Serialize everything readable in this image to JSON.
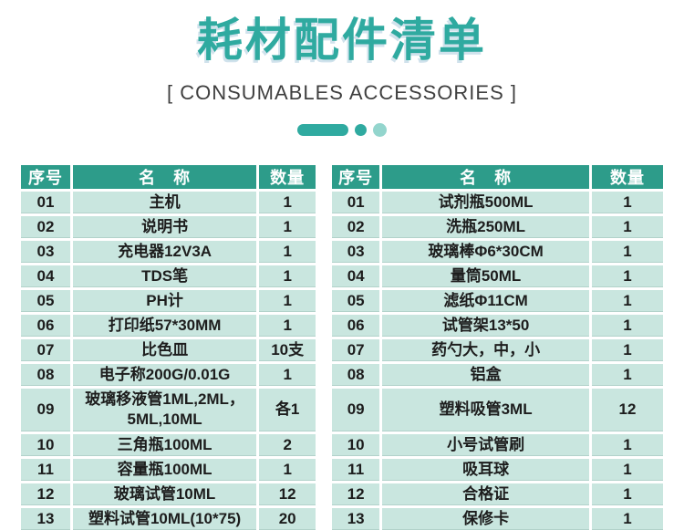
{
  "page": {
    "title": "耗材配件清单",
    "subtitle": "[ CONSUMABLES ACCESSORIES ]"
  },
  "columns": {
    "no": "序号",
    "name": "名　称",
    "qty": "数量"
  },
  "tables": {
    "left": [
      {
        "no": "01",
        "name": "主机",
        "qty": "1"
      },
      {
        "no": "02",
        "name": "说明书",
        "qty": "1"
      },
      {
        "no": "03",
        "name": "充电器12V3A",
        "qty": "1"
      },
      {
        "no": "04",
        "name": "TDS笔",
        "qty": "1"
      },
      {
        "no": "05",
        "name": "PH计",
        "qty": "1"
      },
      {
        "no": "06",
        "name": "打印纸57*30MM",
        "qty": "1"
      },
      {
        "no": "07",
        "name": "比色皿",
        "qty": "10支"
      },
      {
        "no": "08",
        "name": "电子称200G/0.01G",
        "qty": "1"
      },
      {
        "no": "09",
        "name": "玻璃移液管1ML,2ML，5ML,10ML",
        "qty": "各1"
      },
      {
        "no": "10",
        "name": "三角瓶100ML",
        "qty": "2"
      },
      {
        "no": "11",
        "name": "容量瓶100ML",
        "qty": "1"
      },
      {
        "no": "12",
        "name": "玻璃试管10ML",
        "qty": "12"
      },
      {
        "no": "13",
        "name": "塑料试管10ML(10*75)",
        "qty": "20"
      }
    ],
    "right": [
      {
        "no": "01",
        "name": "试剂瓶500ML",
        "qty": "1"
      },
      {
        "no": "02",
        "name": "洗瓶250ML",
        "qty": "1"
      },
      {
        "no": "03",
        "name": "玻璃棒Φ6*30CM",
        "qty": "1"
      },
      {
        "no": "04",
        "name": "量筒50ML",
        "qty": "1"
      },
      {
        "no": "05",
        "name": "滤纸Φ11CM",
        "qty": "1"
      },
      {
        "no": "06",
        "name": "试管架13*50",
        "qty": "1"
      },
      {
        "no": "07",
        "name": "药勺大，中，小",
        "qty": "1"
      },
      {
        "no": "08",
        "name": "铝盒",
        "qty": "1"
      },
      {
        "no": "09",
        "name": "塑料吸管3ML",
        "qty": "12"
      },
      {
        "no": "10",
        "name": "小号试管刷",
        "qty": "1"
      },
      {
        "no": "11",
        "name": "吸耳球",
        "qty": "1"
      },
      {
        "no": "12",
        "name": "合格证",
        "qty": "1"
      },
      {
        "no": "13",
        "name": "保修卡",
        "qty": "1"
      }
    ]
  },
  "colors": {
    "accent": "#2faaa0",
    "header_bg": "#2d9c8a",
    "row_bg": "#c9e6df",
    "dot_light": "#93d5cd"
  }
}
